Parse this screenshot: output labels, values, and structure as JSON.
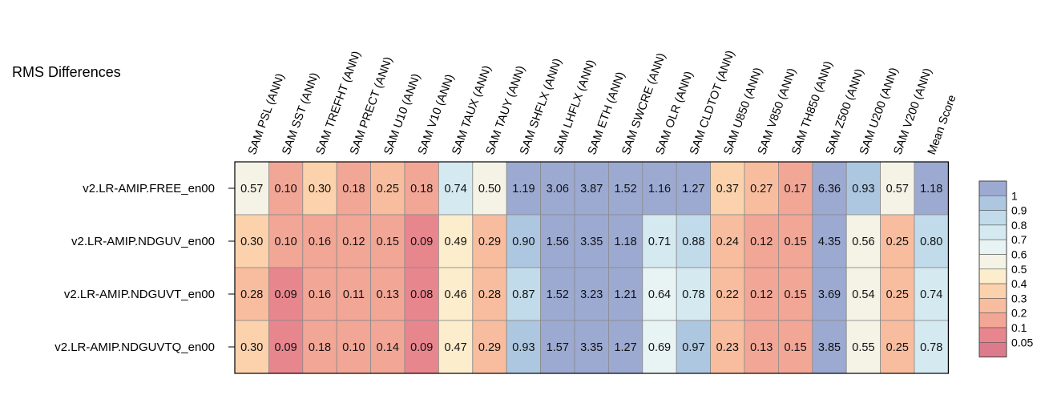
{
  "chart_data": {
    "type": "heatmap",
    "title": "RMS Differences",
    "columns": [
      "SAM PSL (ANN)",
      "SAM SST (ANN)",
      "SAM TREFHT (ANN)",
      "SAM PRECT (ANN)",
      "SAM U10 (ANN)",
      "SAM V10 (ANN)",
      "SAM TAUX (ANN)",
      "SAM TAUY (ANN)",
      "SAM SHFLX (ANN)",
      "SAM LHFLX (ANN)",
      "SAM ETH (ANN)",
      "SAM SWCRE (ANN)",
      "SAM OLR (ANN)",
      "SAM CLDTOT (ANN)",
      "SAM U850 (ANN)",
      "SAM V850 (ANN)",
      "SAM TH850 (ANN)",
      "SAM Z500 (ANN)",
      "SAM U200 (ANN)",
      "SAM V200 (ANN)",
      "Mean Score"
    ],
    "rows": [
      "v2.LR-AMIP.FREE_en00",
      "v2.LR-AMIP.NDGUV_en00",
      "v2.LR-AMIP.NDGUVT_en00",
      "v2.LR-AMIP.NDGUVTQ_en00"
    ],
    "values": [
      [
        "0.57",
        "0.10",
        "0.30",
        "0.18",
        "0.25",
        "0.18",
        "0.74",
        "0.50",
        "1.19",
        "3.06",
        "3.87",
        "1.52",
        "1.16",
        "1.27",
        "0.37",
        "0.27",
        "0.17",
        "6.36",
        "0.93",
        "0.57",
        "1.18"
      ],
      [
        "0.30",
        "0.10",
        "0.16",
        "0.12",
        "0.15",
        "0.09",
        "0.49",
        "0.29",
        "0.90",
        "1.56",
        "3.35",
        "1.18",
        "0.71",
        "0.88",
        "0.24",
        "0.12",
        "0.15",
        "4.35",
        "0.56",
        "0.25",
        "0.80"
      ],
      [
        "0.28",
        "0.09",
        "0.16",
        "0.11",
        "0.13",
        "0.08",
        "0.46",
        "0.28",
        "0.87",
        "1.52",
        "3.23",
        "1.21",
        "0.64",
        "0.78",
        "0.22",
        "0.12",
        "0.15",
        "3.69",
        "0.54",
        "0.25",
        "0.74"
      ],
      [
        "0.30",
        "0.09",
        "0.18",
        "0.10",
        "0.14",
        "0.09",
        "0.47",
        "0.29",
        "0.93",
        "1.57",
        "3.35",
        "1.27",
        "0.69",
        "0.97",
        "0.23",
        "0.13",
        "0.15",
        "3.85",
        "0.55",
        "0.25",
        "0.78"
      ]
    ],
    "legend": {
      "placement": "right",
      "ticks": [
        "1",
        "0.9",
        "0.8",
        "0.7",
        "0.6",
        "0.5",
        "0.4",
        "0.3",
        "0.2",
        "0.1",
        "0.05"
      ],
      "bins": [
        {
          "min": 1.0,
          "color": "#9caad2"
        },
        {
          "min": 0.9,
          "color": "#aec7e1"
        },
        {
          "min": 0.8,
          "color": "#c1dbea"
        },
        {
          "min": 0.7,
          "color": "#d5e9f1"
        },
        {
          "min": 0.6,
          "color": "#e8f3f3"
        },
        {
          "min": 0.5,
          "color": "#f4f3e6"
        },
        {
          "min": 0.4,
          "color": "#fcedcc"
        },
        {
          "min": 0.3,
          "color": "#fbd2ac"
        },
        {
          "min": 0.2,
          "color": "#f8bd9e"
        },
        {
          "min": 0.1,
          "color": "#f2a696"
        },
        {
          "min": 0.05,
          "color": "#e8868e"
        },
        {
          "min": 0.0,
          "color": "#dc7b8c"
        }
      ]
    }
  }
}
